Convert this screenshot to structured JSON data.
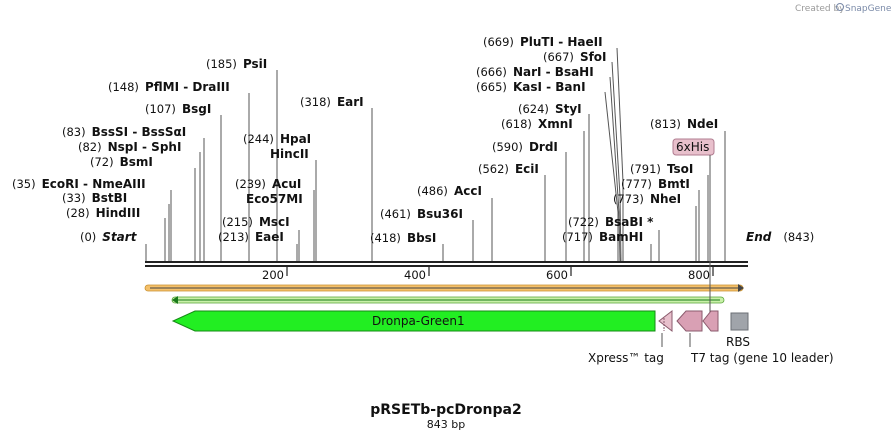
{
  "credit": {
    "prefix": "Created by",
    "brand": "SnapGene"
  },
  "map": {
    "title": "pRSETb-pcDronpa2",
    "length_label": "843 bp",
    "length": 843,
    "start": {
      "label": "Start",
      "pos_label": "(0)",
      "pos": 0
    },
    "end": {
      "label": "End",
      "pos_label": "(843)",
      "pos": 843
    },
    "ticks": [
      {
        "value": 200,
        "label": "200"
      },
      {
        "value": 400,
        "label": "400"
      },
      {
        "value": 600,
        "label": "600"
      },
      {
        "value": 800,
        "label": "800"
      }
    ]
  },
  "sites": [
    {
      "pos_label": "(28)",
      "name": "HindIII"
    },
    {
      "pos_label": "(33)",
      "name": "BstBI"
    },
    {
      "pos_label": "(35)",
      "name": "EcoRI  - NmeAIII"
    },
    {
      "pos_label": "(72)",
      "name": "BsmI"
    },
    {
      "pos_label": "(82)",
      "name": "NspI  - SphI"
    },
    {
      "pos_label": "(83)",
      "name": "BssSI  - BssSαI"
    },
    {
      "pos_label": "(107)",
      "name": "BsgI"
    },
    {
      "pos_label": "(148)",
      "name": "PflMI  - DraIII"
    },
    {
      "pos_label": "(185)",
      "name": "PsiI"
    },
    {
      "pos_label": "(213)",
      "name": "EaeI"
    },
    {
      "pos_label": "(215)",
      "name": "MscI"
    },
    {
      "pos_label": "(239)",
      "name": "AcuI"
    },
    {
      "pos_label": "",
      "name": "Eco57MI"
    },
    {
      "pos_label": "",
      "name": "HincII"
    },
    {
      "pos_label": "(244)",
      "name": "HpaI"
    },
    {
      "pos_label": "(318)",
      "name": "EarI"
    },
    {
      "pos_label": "(418)",
      "name": "BbsI"
    },
    {
      "pos_label": "(461)",
      "name": "Bsu36I"
    },
    {
      "pos_label": "(486)",
      "name": "AccI"
    },
    {
      "pos_label": "(562)",
      "name": "EciI"
    },
    {
      "pos_label": "(590)",
      "name": "DrdI"
    },
    {
      "pos_label": "(618)",
      "name": "XmnI"
    },
    {
      "pos_label": "(624)",
      "name": "StyI"
    },
    {
      "pos_label": "(665)",
      "name": "KasI  - BanI"
    },
    {
      "pos_label": "(666)",
      "name": "NarI  - BsaHI"
    },
    {
      "pos_label": "(667)",
      "name": "SfoI"
    },
    {
      "pos_label": "(669)",
      "name": "PluTI  - HaeII"
    },
    {
      "pos_label": "(717)",
      "name": "BamHI"
    },
    {
      "pos_label": "(722)",
      "name": "BsaBI *"
    },
    {
      "pos_label": "(773)",
      "name": "NheI"
    },
    {
      "pos_label": "(777)",
      "name": "BmtI"
    },
    {
      "pos_label": "(791)",
      "name": "TsoI"
    },
    {
      "pos_label": "(813)",
      "name": "NdeI"
    }
  ],
  "features": {
    "dronpa": {
      "label": "Dronpa-Green1",
      "color": "#22ee22"
    },
    "xpress": {
      "label": "Xpress™ tag",
      "color": "#d9a0b4"
    },
    "t7tag": {
      "label": "T7 tag (gene 10 leader)",
      "color": "#d9a0b4"
    },
    "his": {
      "label": "6xHis",
      "color": "#d9a0b4"
    },
    "rbs": {
      "label": "RBS",
      "color": "#a0a4aa"
    },
    "orf_bar": {
      "color": "#f4c06a"
    },
    "orf_inner": {
      "color": "#22cc22"
    }
  }
}
